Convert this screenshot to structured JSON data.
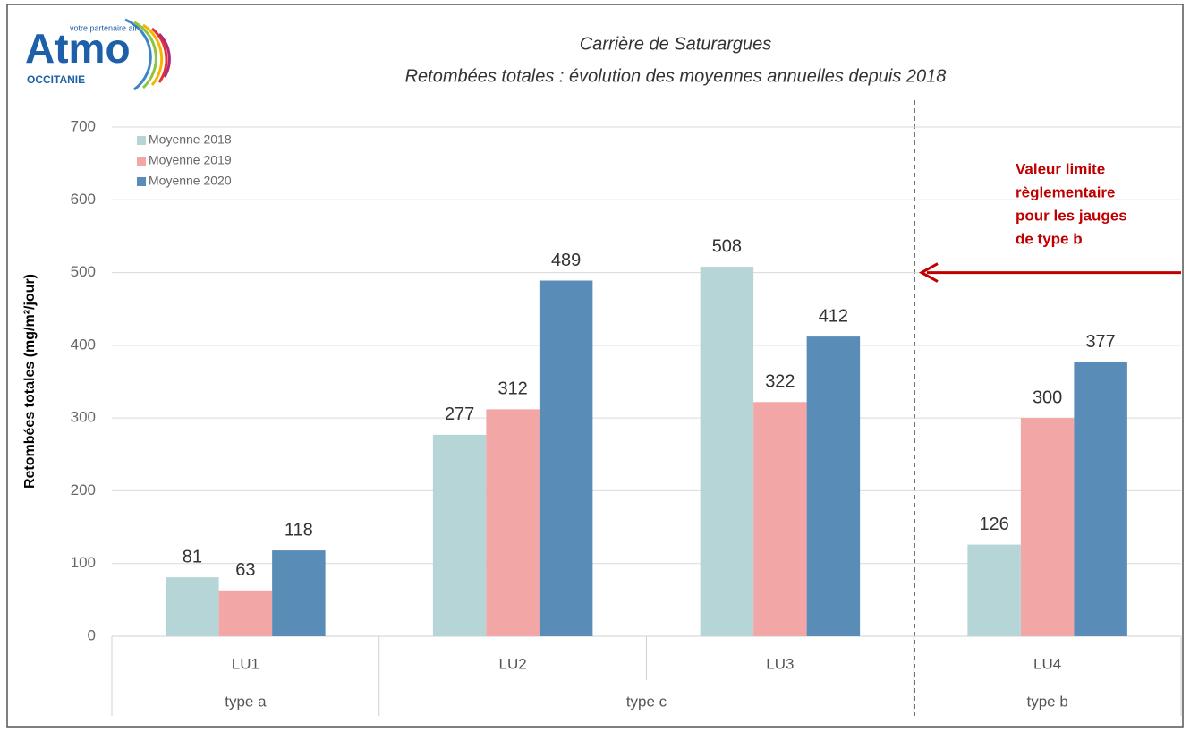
{
  "logo": {
    "name": "Atmo",
    "region": "OCCITANIE",
    "tagline": "votre partenaire air"
  },
  "chart_data": {
    "type": "bar",
    "title": "Carrière de Saturargues",
    "subtitle": "Retombées totales : évolution des moyennes annuelles depuis 2018",
    "y_label": "Retombées totales (mg/m²/jour)",
    "categories": [
      "LU1",
      "LU2",
      "LU3",
      "LU4"
    ],
    "category_groups": [
      {
        "label": "type a",
        "count": 1
      },
      {
        "label": "type c",
        "count": 2
      },
      {
        "label": "type b",
        "count": 1
      }
    ],
    "series": [
      {
        "name": "Moyenne 2018",
        "color": "#b5d5d6",
        "values": [
          81,
          277,
          508,
          126
        ]
      },
      {
        "name": "Moyenne 2019",
        "color": "#f2a6a6",
        "values": [
          63,
          312,
          322,
          300
        ]
      },
      {
        "name": "Moyenne 2020",
        "color": "#5a8cb8",
        "values": [
          118,
          489,
          412,
          377
        ]
      }
    ],
    "ylim": [
      0,
      700
    ],
    "yticks": [
      0,
      100,
      200,
      300,
      400,
      500,
      600,
      700
    ],
    "grid": true,
    "legend": "upper left",
    "annotation": {
      "value": 500,
      "color": "#c00000",
      "lines": [
        "Valeur limite",
        "règlementaire",
        "pour les jauges",
        "de type b"
      ]
    }
  }
}
